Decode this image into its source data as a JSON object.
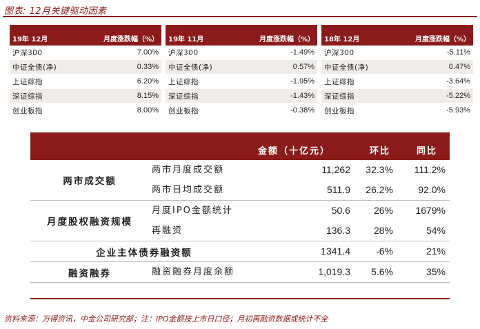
{
  "figure_title": "图表: 12月关键驱动因素",
  "mini_tables": [
    {
      "period": "19年 12月",
      "col": "月度涨跌幅（%）",
      "rows": [
        {
          "name": "沪深300",
          "value": "7.00%"
        },
        {
          "name": "中证全债(净)",
          "value": "0.33%"
        },
        {
          "name": "上证综指",
          "value": "6.20%"
        },
        {
          "name": "深证综指",
          "value": "8.15%"
        },
        {
          "name": "创业板指",
          "value": "8.00%"
        }
      ]
    },
    {
      "period": "19年 11月",
      "col": "月度涨跌幅（%）",
      "rows": [
        {
          "name": "沪深300",
          "value": "-1.49%"
        },
        {
          "name": "中证全债(净)",
          "value": "0.57%"
        },
        {
          "name": "上证综指",
          "value": "-1.95%"
        },
        {
          "name": "深证综指",
          "value": "-1.43%"
        },
        {
          "name": "创业板指",
          "value": "-0.38%"
        }
      ]
    },
    {
      "period": "18年 12月",
      "col": "月度涨跌幅（%）",
      "rows": [
        {
          "name": "沪深300",
          "value": "-5.11%"
        },
        {
          "name": "中证全债(净)",
          "value": "0.47%"
        },
        {
          "name": "上证综指",
          "value": "-3.64%"
        },
        {
          "name": "深证综指",
          "value": "-5.22%"
        },
        {
          "name": "创业板指",
          "value": "-5.93%"
        }
      ]
    }
  ],
  "main_table": {
    "headers": {
      "amount": "金额（十亿元）",
      "mom": "环比",
      "yoy": "同比"
    },
    "groups": [
      {
        "category": "两市成交额",
        "rows": [
          {
            "label": "两市月度成交额",
            "amount": "11,262",
            "mom": "32.3%",
            "yoy": "111.2%"
          },
          {
            "label": "两市日均成交额",
            "amount": "511.9",
            "mom": "26.2%",
            "yoy": "92.0%"
          }
        ]
      },
      {
        "category": "月度股权融资规模",
        "rows": [
          {
            "label": "月度IPO金额统计",
            "amount": "50.6",
            "mom": "26%",
            "yoy": "1679%"
          },
          {
            "label": "再融资",
            "amount": "136.3",
            "mom": "28%",
            "yoy": "54%"
          }
        ]
      }
    ],
    "bond_row": {
      "label": "企业主体债券融资额",
      "amount": "1341.4",
      "mom": "-6%",
      "yoy": "21%"
    },
    "margin_row": {
      "category": "融资融券",
      "label": "融资融券月度余额",
      "amount": "1,019.3",
      "mom": "5.6%",
      "yoy": "35%"
    }
  },
  "source_note": "资料来源：万得资讯，中金公司研究部；注：IPO金额按上市日口径；月初再融资数据或统计不全"
}
